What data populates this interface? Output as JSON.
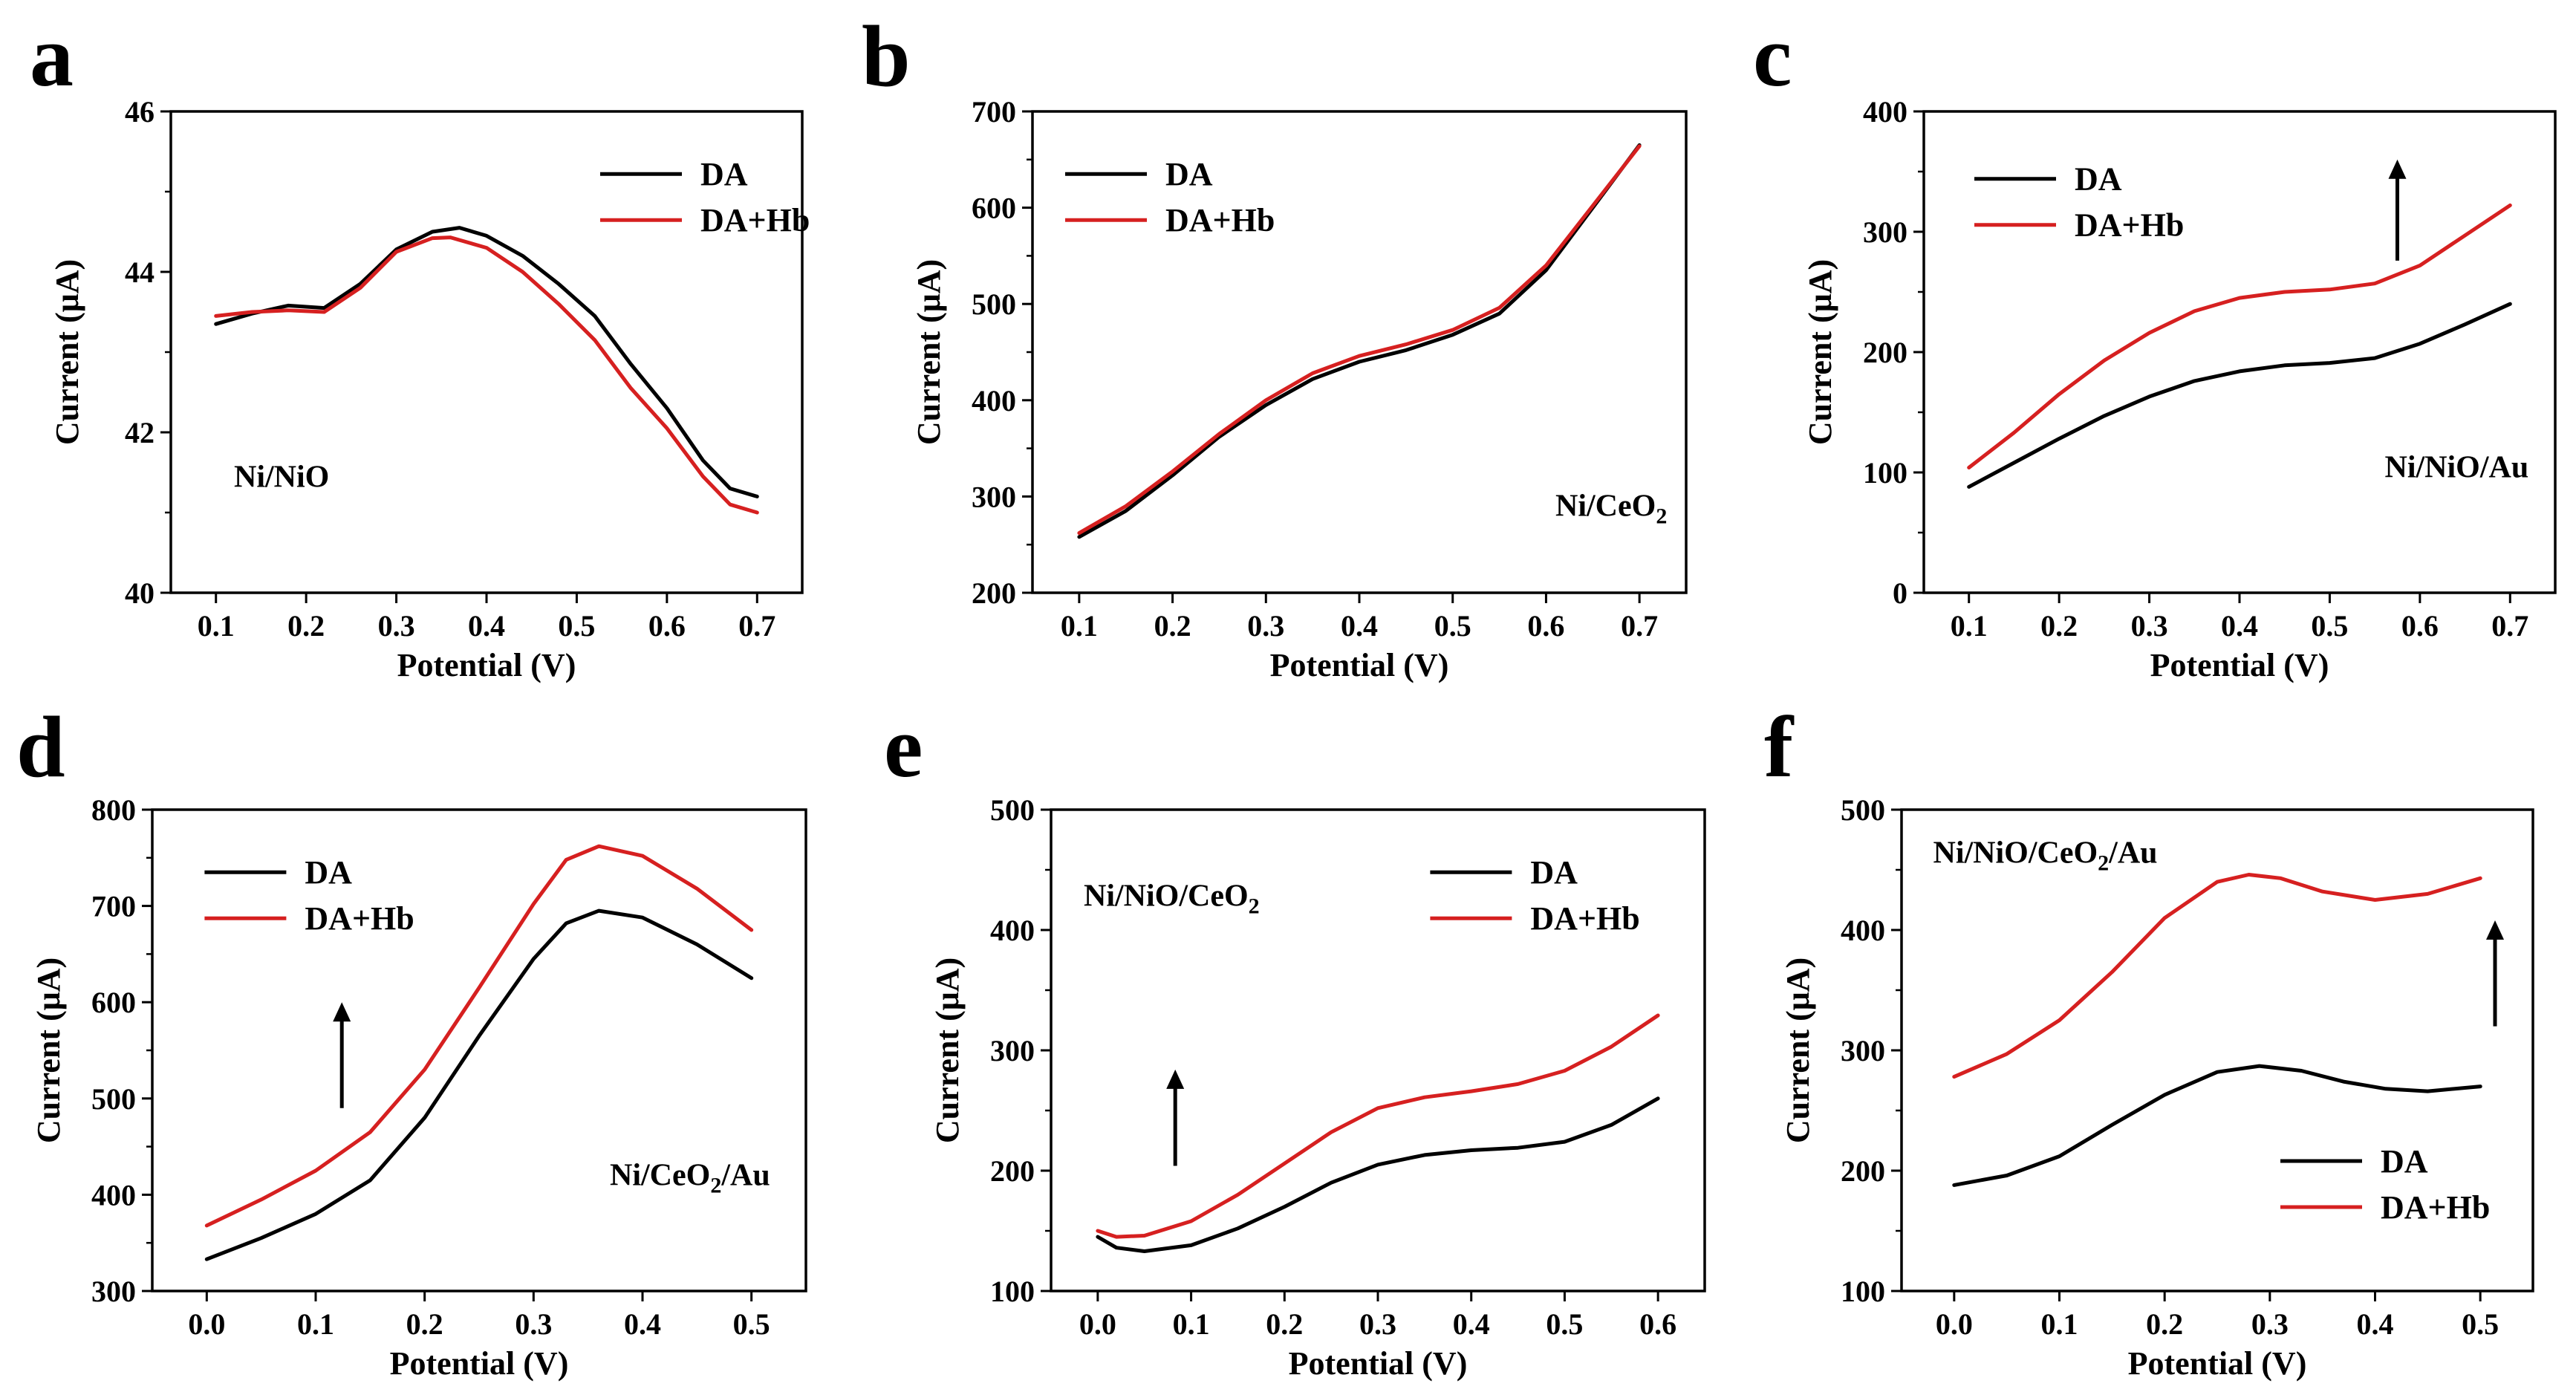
{
  "colors": {
    "DA": "#000000",
    "DA+Hb": "#d62020",
    "axis": "#000000"
  },
  "chart_data": [
    {
      "panel": "a",
      "type": "line",
      "annotation": "Ni/NiO",
      "annotation_sub": "",
      "xlabel": "Potential (V)",
      "ylabel": "Current (μA)",
      "xlim": [
        0.05,
        0.75
      ],
      "ylim": [
        40,
        46
      ],
      "xticks": [
        "0.1",
        "0.2",
        "0.3",
        "0.4",
        "0.5",
        "0.6",
        "0.7"
      ],
      "yticks": [
        "40",
        "42",
        "44",
        "46"
      ],
      "legend": [
        "DA",
        "DA+Hb"
      ],
      "legend_position": "top-right",
      "arrow": "none",
      "series": [
        {
          "name": "DA",
          "x": [
            0.1,
            0.14,
            0.18,
            0.22,
            0.26,
            0.3,
            0.34,
            0.37,
            0.4,
            0.44,
            0.48,
            0.52,
            0.56,
            0.6,
            0.64,
            0.67,
            0.7
          ],
          "y": [
            43.35,
            43.48,
            43.58,
            43.55,
            43.85,
            44.28,
            44.5,
            44.55,
            44.45,
            44.2,
            43.85,
            43.45,
            42.85,
            42.3,
            41.65,
            41.3,
            41.2
          ]
        },
        {
          "name": "DA+Hb",
          "x": [
            0.1,
            0.14,
            0.18,
            0.22,
            0.26,
            0.3,
            0.34,
            0.36,
            0.4,
            0.44,
            0.48,
            0.52,
            0.56,
            0.6,
            0.64,
            0.67,
            0.7
          ],
          "y": [
            43.45,
            43.5,
            43.52,
            43.5,
            43.8,
            44.25,
            44.42,
            44.43,
            44.3,
            44.0,
            43.6,
            43.15,
            42.55,
            42.05,
            41.45,
            41.1,
            41.0
          ]
        }
      ]
    },
    {
      "panel": "b",
      "type": "line",
      "annotation": "Ni/CeO",
      "annotation_sub": "2",
      "xlabel": "Potential (V)",
      "ylabel": "Current (μA)",
      "xlim": [
        0.05,
        0.75
      ],
      "ylim": [
        200,
        700
      ],
      "xticks": [
        "0.1",
        "0.2",
        "0.3",
        "0.4",
        "0.5",
        "0.6",
        "0.7"
      ],
      "yticks": [
        "200",
        "300",
        "400",
        "500",
        "600",
        "700"
      ],
      "legend": [
        "DA",
        "DA+Hb"
      ],
      "legend_position": "top-left",
      "arrow": "none",
      "series": [
        {
          "name": "DA",
          "x": [
            0.1,
            0.15,
            0.2,
            0.25,
            0.3,
            0.35,
            0.4,
            0.45,
            0.5,
            0.55,
            0.6,
            0.65,
            0.7
          ],
          "y": [
            258,
            285,
            322,
            362,
            395,
            422,
            440,
            452,
            468,
            490,
            535,
            600,
            665
          ]
        },
        {
          "name": "DA+Hb",
          "x": [
            0.1,
            0.15,
            0.2,
            0.25,
            0.3,
            0.35,
            0.4,
            0.45,
            0.5,
            0.55,
            0.6,
            0.65,
            0.7
          ],
          "y": [
            262,
            290,
            326,
            365,
            400,
            428,
            446,
            458,
            473,
            496,
            540,
            602,
            664
          ]
        }
      ]
    },
    {
      "panel": "c",
      "type": "line",
      "annotation": "Ni/NiO/Au",
      "annotation_sub": "",
      "xlabel": "Potential (V)",
      "ylabel": "Current (μA)",
      "xlim": [
        0.05,
        0.75
      ],
      "ylim": [
        0,
        400
      ],
      "xticks": [
        "0.1",
        "0.2",
        "0.3",
        "0.4",
        "0.5",
        "0.6",
        "0.7"
      ],
      "yticks": [
        "0",
        "100",
        "200",
        "300",
        "400"
      ],
      "legend": [
        "DA",
        "DA+Hb"
      ],
      "legend_position": "top-left",
      "arrow": "up",
      "series": [
        {
          "name": "DA",
          "x": [
            0.1,
            0.15,
            0.2,
            0.25,
            0.3,
            0.35,
            0.4,
            0.45,
            0.5,
            0.55,
            0.6,
            0.65,
            0.7
          ],
          "y": [
            88,
            108,
            128,
            147,
            163,
            176,
            184,
            189,
            191,
            195,
            207,
            223,
            240
          ]
        },
        {
          "name": "DA+Hb",
          "x": [
            0.1,
            0.15,
            0.2,
            0.25,
            0.3,
            0.35,
            0.4,
            0.45,
            0.5,
            0.55,
            0.6,
            0.65,
            0.7
          ],
          "y": [
            104,
            133,
            165,
            193,
            216,
            234,
            245,
            250,
            252,
            257,
            272,
            297,
            322
          ]
        }
      ]
    },
    {
      "panel": "d",
      "type": "line",
      "annotation": "Ni/CeO",
      "annotation_sub": "2",
      "annotation_after": "/Au",
      "xlabel": "Potential (V)",
      "ylabel": "Current (μA)",
      "xlim": [
        -0.05,
        0.55
      ],
      "ylim": [
        300,
        800
      ],
      "xticks": [
        "0.0",
        "0.1",
        "0.2",
        "0.3",
        "0.4",
        "0.5"
      ],
      "yticks": [
        "300",
        "400",
        "500",
        "600",
        "700",
        "800"
      ],
      "legend": [
        "DA",
        "DA+Hb"
      ],
      "legend_position": "top-left",
      "arrow": "up",
      "series": [
        {
          "name": "DA",
          "x": [
            0.0,
            0.05,
            0.1,
            0.15,
            0.2,
            0.25,
            0.3,
            0.33,
            0.36,
            0.4,
            0.45,
            0.5
          ],
          "y": [
            333,
            355,
            380,
            415,
            480,
            565,
            645,
            682,
            695,
            688,
            660,
            625
          ]
        },
        {
          "name": "DA+Hb",
          "x": [
            0.0,
            0.05,
            0.1,
            0.15,
            0.2,
            0.25,
            0.3,
            0.33,
            0.36,
            0.4,
            0.45,
            0.5
          ],
          "y": [
            368,
            395,
            425,
            465,
            530,
            615,
            702,
            748,
            762,
            752,
            718,
            675
          ]
        }
      ]
    },
    {
      "panel": "e",
      "type": "line",
      "annotation": "Ni/NiO/CeO",
      "annotation_sub": "2",
      "xlabel": "Potential (V)",
      "ylabel": "Current (μA)",
      "xlim": [
        -0.05,
        0.65
      ],
      "ylim": [
        100,
        500
      ],
      "xticks": [
        "0.0",
        "0.1",
        "0.2",
        "0.3",
        "0.4",
        "0.5",
        "0.6"
      ],
      "yticks": [
        "100",
        "200",
        "300",
        "400",
        "500"
      ],
      "legend": [
        "DA",
        "DA+Hb"
      ],
      "legend_position": "top-right",
      "arrow": "up",
      "series": [
        {
          "name": "DA",
          "x": [
            0.0,
            0.02,
            0.05,
            0.1,
            0.15,
            0.2,
            0.25,
            0.3,
            0.35,
            0.4,
            0.45,
            0.5,
            0.55,
            0.6
          ],
          "y": [
            145,
            136,
            133,
            138,
            152,
            170,
            190,
            205,
            213,
            217,
            219,
            224,
            238,
            260
          ]
        },
        {
          "name": "DA+Hb",
          "x": [
            0.0,
            0.02,
            0.05,
            0.1,
            0.15,
            0.2,
            0.25,
            0.3,
            0.35,
            0.4,
            0.45,
            0.5,
            0.55,
            0.6
          ],
          "y": [
            150,
            145,
            146,
            158,
            180,
            206,
            232,
            252,
            261,
            266,
            272,
            283,
            303,
            329
          ]
        }
      ]
    },
    {
      "panel": "f",
      "type": "line",
      "annotation": "Ni/NiO/CeO",
      "annotation_sub": "2",
      "annotation_after": "/Au",
      "xlabel": "Potential (V)",
      "ylabel": "Current (μA)",
      "xlim": [
        -0.05,
        0.55
      ],
      "ylim": [
        100,
        500
      ],
      "xticks": [
        "0.0",
        "0.1",
        "0.2",
        "0.3",
        "0.4",
        "0.5"
      ],
      "yticks": [
        "100",
        "200",
        "300",
        "400",
        "500"
      ],
      "legend": [
        "DA",
        "DA+Hb"
      ],
      "legend_position": "bottom-right",
      "arrow": "up",
      "series": [
        {
          "name": "DA",
          "x": [
            0.0,
            0.05,
            0.1,
            0.15,
            0.2,
            0.25,
            0.29,
            0.33,
            0.37,
            0.41,
            0.45,
            0.5
          ],
          "y": [
            188,
            196,
            212,
            238,
            263,
            282,
            287,
            283,
            274,
            268,
            266,
            270
          ]
        },
        {
          "name": "DA+Hb",
          "x": [
            0.0,
            0.05,
            0.1,
            0.15,
            0.2,
            0.25,
            0.28,
            0.31,
            0.35,
            0.4,
            0.45,
            0.5
          ],
          "y": [
            278,
            297,
            325,
            365,
            410,
            440,
            446,
            443,
            432,
            425,
            430,
            443
          ]
        }
      ]
    }
  ]
}
